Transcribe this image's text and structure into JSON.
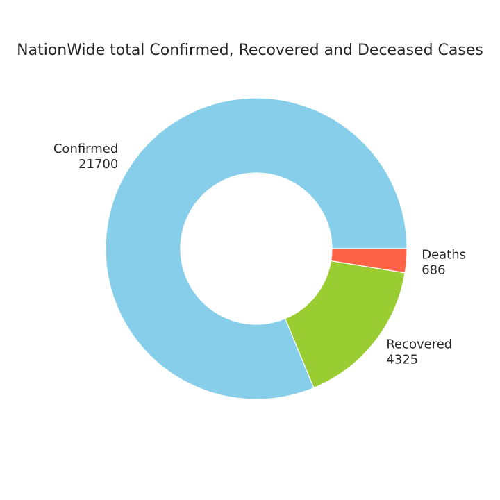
{
  "chart_data": {
    "type": "pie",
    "title": "NationWide total Confirmed, Recovered and Deceased Cases",
    "donut": true,
    "categories": [
      "Confirmed",
      "Recovered",
      "Deaths"
    ],
    "values": [
      21700,
      4325,
      686
    ],
    "value_labels": [
      "21700",
      "4325",
      "686"
    ],
    "colors": [
      "#87ceeb",
      "#9acd32",
      "#ff6347"
    ],
    "start_angle_deg": 0,
    "direction": "counterclockwise",
    "legend": "none"
  }
}
